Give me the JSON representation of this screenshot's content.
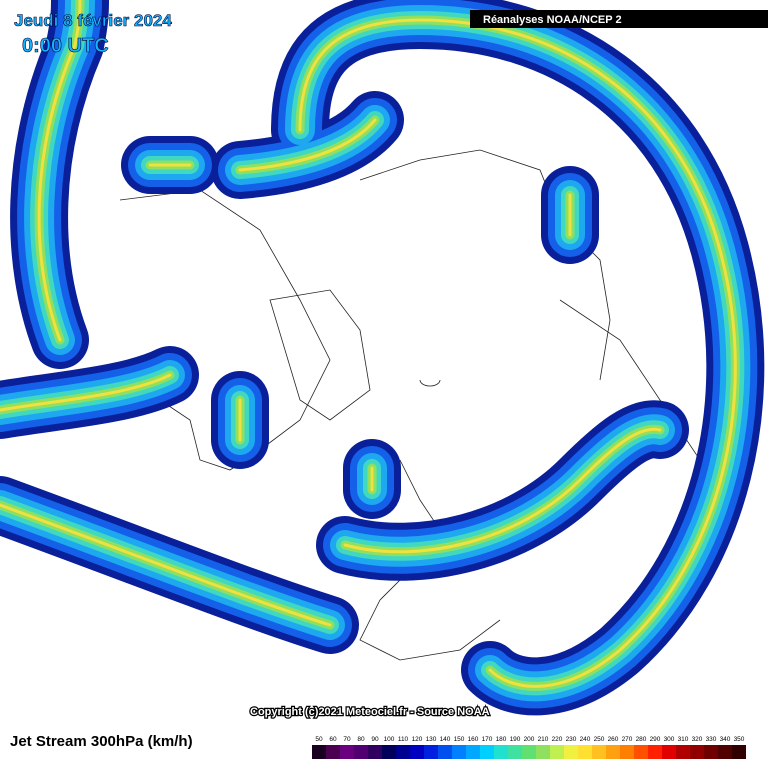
{
  "header": {
    "date": "Jeudi 8 février 2024",
    "time": "0:00 UTC",
    "source": "Réanalyses NOAA/NCEP 2"
  },
  "footer": {
    "copyright": "Copyright (c)2021 Meteociel.fr - Source NOAA",
    "title": "Jet Stream 300hPa (km/h)"
  },
  "legend": {
    "values": [
      50,
      60,
      70,
      80,
      90,
      100,
      110,
      120,
      130,
      140,
      150,
      160,
      170,
      180,
      190,
      200,
      210,
      220,
      230,
      240,
      250,
      260,
      270,
      280,
      290,
      300,
      310,
      320,
      330,
      340,
      350
    ],
    "colors": [
      "#1a0020",
      "#4b0050",
      "#6a0080",
      "#500070",
      "#300060",
      "#00005a",
      "#000090",
      "#0000c0",
      "#0020e0",
      "#0050f0",
      "#0080ff",
      "#00a8ff",
      "#00d0ff",
      "#20e0d0",
      "#40e0a0",
      "#60e070",
      "#90e060",
      "#c0f050",
      "#f0f040",
      "#ffe030",
      "#ffc020",
      "#ffa010",
      "#ff8000",
      "#ff5000",
      "#ff2000",
      "#e00000",
      "#b00000",
      "#900000",
      "#700000",
      "#500000",
      "#300000"
    ]
  }
}
